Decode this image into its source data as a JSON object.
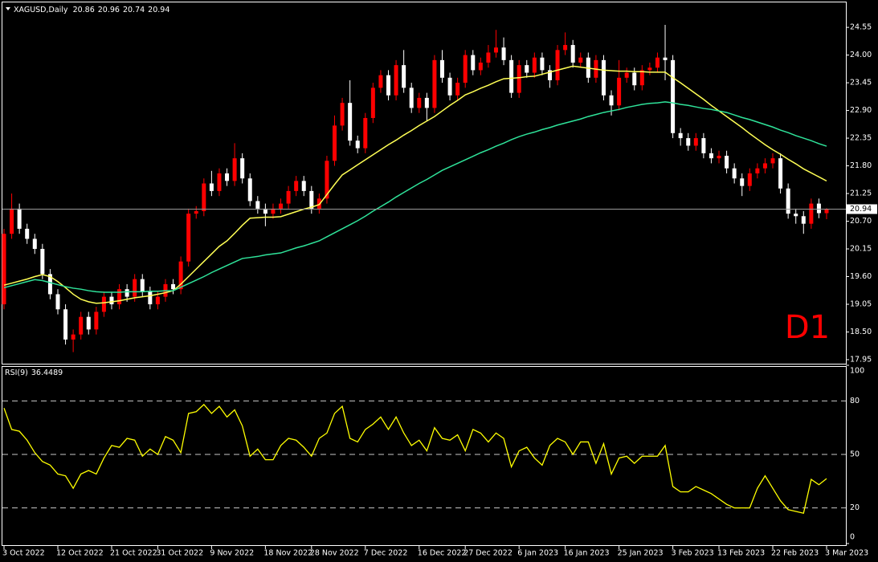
{
  "chart_data": {
    "type": "candlestick",
    "symbol": "XAGUSD,Daily",
    "watermark": "D1",
    "categories": [
      "3 Oct 2022",
      null,
      null,
      null,
      null,
      null,
      null,
      "12 Oct 2022",
      null,
      null,
      null,
      null,
      null,
      null,
      "21 Oct 2022",
      null,
      null,
      null,
      null,
      null,
      "31 Oct 2022",
      null,
      null,
      null,
      null,
      null,
      null,
      "9 Nov 2022",
      null,
      null,
      null,
      null,
      null,
      null,
      "18 Nov 2022",
      null,
      null,
      null,
      null,
      null,
      "28 Nov 2022",
      null,
      null,
      null,
      null,
      null,
      null,
      "7 Dec 2022",
      null,
      null,
      null,
      null,
      null,
      null,
      "16 Dec 2022",
      null,
      null,
      null,
      null,
      null,
      "27 Dec 2022",
      null,
      null,
      null,
      null,
      null,
      null,
      "6 Jan 2023",
      null,
      null,
      null,
      null,
      null,
      "16 Jan 2023",
      null,
      null,
      null,
      null,
      null,
      null,
      "25 Jan 2023",
      null,
      null,
      null,
      null,
      null,
      null,
      "3 Feb 2023",
      null,
      null,
      null,
      null,
      null,
      "13 Feb 2023",
      null,
      null,
      null,
      null,
      null,
      null,
      "22 Feb 2023",
      null,
      null,
      null,
      null,
      null,
      null,
      "3 Mar 2023"
    ],
    "open": [
      19.05,
      20.45,
      20.95,
      20.55,
      20.35,
      20.15,
      19.65,
      19.25,
      18.95,
      18.35,
      18.45,
      18.8,
      18.55,
      18.9,
      19.2,
      19.05,
      19.35,
      19.2,
      19.55,
      19.3,
      19.05,
      19.2,
      19.45,
      19.35,
      19.9,
      20.85,
      20.9,
      21.45,
      21.3,
      21.65,
      21.5,
      21.95,
      21.55,
      21.1,
      20.95,
      20.85,
      20.95,
      21.05,
      21.3,
      21.5,
      21.3,
      20.95,
      21.15,
      21.9,
      22.6,
      23.05,
      22.3,
      22.15,
      22.75,
      23.35,
      23.6,
      23.2,
      23.8,
      23.35,
      22.95,
      23.15,
      22.95,
      23.9,
      23.55,
      23.2,
      23.45,
      24.0,
      23.7,
      23.85,
      24.05,
      24.15,
      23.9,
      23.25,
      23.8,
      23.65,
      23.95,
      23.7,
      23.5,
      24.1,
      24.2,
      23.85,
      23.95,
      23.55,
      23.9,
      23.2,
      23.0,
      23.55,
      23.65,
      23.4,
      23.7,
      23.75,
      23.95,
      23.9,
      22.45,
      22.35,
      22.2,
      22.35,
      22.05,
      21.95,
      22.0,
      21.75,
      21.55,
      21.4,
      21.65,
      21.75,
      21.85,
      21.95,
      21.35,
      20.85,
      20.8,
      20.65,
      21.05,
      20.86
    ],
    "high": [
      20.55,
      21.25,
      21.05,
      20.65,
      20.45,
      20.25,
      19.75,
      19.35,
      19.05,
      18.55,
      18.9,
      18.9,
      19.0,
      19.3,
      19.3,
      19.45,
      19.45,
      19.65,
      19.65,
      19.4,
      19.3,
      19.55,
      19.55,
      20.0,
      20.95,
      21.0,
      21.55,
      21.7,
      21.75,
      21.75,
      22.25,
      22.05,
      21.65,
      21.2,
      21.05,
      21.05,
      21.15,
      21.4,
      21.6,
      21.6,
      21.4,
      21.25,
      22.0,
      22.8,
      23.15,
      23.5,
      22.4,
      22.85,
      23.45,
      23.7,
      23.7,
      23.9,
      24.1,
      23.45,
      23.25,
      23.25,
      24.0,
      24.1,
      23.65,
      23.55,
      24.1,
      24.1,
      23.95,
      24.2,
      24.5,
      24.35,
      24.0,
      23.9,
      23.9,
      24.05,
      24.05,
      23.8,
      24.2,
      24.45,
      24.3,
      24.05,
      24.05,
      24.0,
      24.0,
      23.3,
      23.9,
      23.75,
      23.75,
      23.8,
      23.85,
      24.05,
      24.6,
      24.0,
      22.55,
      22.45,
      22.45,
      22.45,
      22.15,
      22.1,
      22.1,
      21.85,
      21.65,
      21.75,
      21.85,
      21.95,
      22.05,
      22.05,
      21.45,
      20.95,
      20.9,
      21.15,
      21.15,
      20.96
    ],
    "low": [
      18.95,
      20.35,
      20.45,
      20.25,
      20.05,
      19.55,
      19.15,
      18.85,
      18.25,
      18.1,
      18.35,
      18.45,
      18.45,
      18.8,
      18.95,
      18.95,
      19.1,
      19.1,
      19.2,
      18.95,
      18.95,
      19.1,
      19.25,
      19.25,
      19.8,
      20.75,
      20.8,
      21.2,
      21.2,
      21.4,
      21.4,
      21.45,
      21.0,
      20.85,
      20.6,
      20.75,
      20.85,
      20.95,
      21.2,
      21.2,
      20.85,
      20.85,
      21.05,
      21.8,
      22.5,
      22.2,
      22.05,
      22.05,
      22.65,
      23.25,
      23.1,
      23.1,
      23.25,
      22.85,
      22.85,
      22.7,
      22.85,
      23.45,
      23.1,
      23.1,
      23.35,
      23.6,
      23.6,
      23.75,
      23.95,
      23.8,
      23.15,
      23.15,
      23.55,
      23.55,
      23.6,
      23.35,
      23.4,
      24.0,
      23.75,
      23.75,
      23.45,
      23.45,
      23.1,
      22.8,
      22.9,
      23.45,
      23.3,
      23.3,
      23.6,
      23.65,
      23.5,
      22.35,
      22.2,
      22.1,
      22.1,
      21.95,
      21.85,
      21.85,
      21.65,
      21.45,
      21.2,
      21.3,
      21.55,
      21.65,
      21.75,
      21.25,
      20.75,
      20.65,
      20.45,
      20.55,
      20.76,
      20.74
    ],
    "close": [
      20.45,
      20.95,
      20.55,
      20.35,
      20.15,
      19.65,
      19.25,
      18.95,
      18.35,
      18.45,
      18.8,
      18.55,
      18.9,
      19.2,
      19.05,
      19.35,
      19.2,
      19.55,
      19.3,
      19.05,
      19.2,
      19.45,
      19.35,
      19.9,
      20.85,
      20.9,
      21.45,
      21.3,
      21.65,
      21.5,
      21.95,
      21.55,
      21.1,
      20.95,
      20.85,
      20.95,
      21.05,
      21.3,
      21.5,
      21.3,
      20.95,
      21.15,
      21.9,
      22.6,
      23.05,
      22.3,
      22.15,
      22.75,
      23.35,
      23.6,
      23.2,
      23.8,
      23.35,
      22.95,
      23.15,
      22.95,
      23.9,
      23.55,
      23.2,
      23.45,
      24.0,
      23.7,
      23.85,
      24.05,
      24.15,
      23.9,
      23.25,
      23.8,
      23.65,
      23.95,
      23.7,
      23.5,
      24.1,
      24.2,
      23.85,
      23.95,
      23.55,
      23.9,
      23.2,
      23.0,
      23.55,
      23.65,
      23.4,
      23.7,
      23.75,
      23.95,
      23.9,
      22.45,
      22.35,
      22.2,
      22.35,
      22.05,
      21.95,
      22.0,
      21.75,
      21.55,
      21.4,
      21.65,
      21.75,
      21.85,
      21.95,
      21.35,
      20.85,
      20.8,
      20.65,
      21.05,
      20.86,
      20.94
    ],
    "up_color": "#ff0000",
    "down_color": "#ffffff",
    "last_price_line": true,
    "overlays": [
      {
        "color": "#ffff55",
        "values": [
          19.43,
          19.47,
          19.51,
          19.55,
          19.6,
          19.64,
          19.6,
          19.5,
          19.38,
          19.25,
          19.15,
          19.1,
          19.07,
          19.08,
          19.1,
          19.12,
          19.15,
          19.18,
          19.2,
          19.22,
          19.25,
          19.28,
          19.32,
          19.45,
          19.6,
          19.75,
          19.9,
          20.05,
          20.2,
          20.31,
          20.46,
          20.62,
          20.76,
          20.77,
          20.78,
          20.78,
          20.79,
          20.84,
          20.89,
          20.94,
          20.98,
          21.03,
          21.23,
          21.43,
          21.62,
          21.72,
          21.82,
          21.92,
          22.02,
          22.12,
          22.22,
          22.31,
          22.41,
          22.5,
          22.6,
          22.69,
          22.78,
          22.89,
          23.0,
          23.1,
          23.21,
          23.27,
          23.34,
          23.4,
          23.47,
          23.53,
          23.54,
          23.55,
          23.57,
          23.58,
          23.62,
          23.66,
          23.7,
          23.74,
          23.78,
          23.76,
          23.74,
          23.72,
          23.7,
          23.69,
          23.68,
          23.68,
          23.67,
          23.67,
          23.66,
          23.66,
          23.66,
          23.55,
          23.45,
          23.34,
          23.23,
          23.12,
          23.0,
          22.89,
          22.78,
          22.67,
          22.56,
          22.44,
          22.33,
          22.22,
          22.12,
          22.03,
          21.93,
          21.84,
          21.74,
          21.66,
          21.58,
          21.5
        ]
      },
      {
        "color": "#2fe39a",
        "values": [
          19.38,
          19.42,
          19.46,
          19.5,
          19.54,
          19.52,
          19.48,
          19.44,
          19.4,
          19.37,
          19.35,
          19.32,
          19.3,
          19.29,
          19.29,
          19.29,
          19.3,
          19.3,
          19.3,
          19.31,
          19.31,
          19.32,
          19.32,
          19.39,
          19.46,
          19.53,
          19.6,
          19.68,
          19.75,
          19.82,
          19.89,
          19.96,
          19.98,
          20.0,
          20.03,
          20.05,
          20.07,
          20.12,
          20.17,
          20.21,
          20.26,
          20.31,
          20.39,
          20.47,
          20.55,
          20.63,
          20.71,
          20.8,
          20.9,
          20.99,
          21.08,
          21.18,
          21.27,
          21.36,
          21.45,
          21.53,
          21.62,
          21.71,
          21.78,
          21.85,
          21.92,
          21.99,
          22.06,
          22.12,
          22.19,
          22.25,
          22.32,
          22.38,
          22.43,
          22.47,
          22.52,
          22.56,
          22.61,
          22.65,
          22.69,
          22.73,
          22.78,
          22.82,
          22.86,
          22.89,
          22.92,
          22.96,
          22.99,
          23.02,
          23.04,
          23.05,
          23.07,
          23.05,
          23.02,
          23.0,
          22.97,
          22.94,
          22.92,
          22.89,
          22.86,
          22.81,
          22.76,
          22.72,
          22.67,
          22.62,
          22.57,
          22.51,
          22.46,
          22.4,
          22.35,
          22.3,
          22.24,
          22.19
        ]
      }
    ],
    "ylim": [
      17.87,
      25.03
    ],
    "yticks": [
      17.95,
      {
        "value": 18.5,
        "label": "18.50"
      },
      19.05,
      {
        "value": 19.6,
        "label": "19.60"
      },
      20.15,
      {
        "value": 20.7,
        "label": "20.70"
      },
      21.25,
      {
        "value": 21.8,
        "label": "21.80"
      },
      22.35,
      {
        "value": 22.9,
        "label": "22.90"
      },
      23.45,
      {
        "value": 24.0,
        "label": "24.00"
      },
      24.55
    ],
    "indicator": {
      "type": "line",
      "name": "RSI(9)",
      "color": "#ffff00",
      "values": [
        76,
        64,
        63,
        58,
        51,
        46,
        44,
        39,
        38,
        31,
        39,
        41,
        39,
        48,
        55,
        54,
        59,
        58,
        49,
        53,
        50,
        60,
        58,
        51,
        73,
        74,
        78,
        73,
        77,
        71,
        75,
        66,
        49,
        53,
        47,
        47,
        55,
        59,
        58,
        54,
        49,
        59,
        62,
        73,
        77,
        59,
        57,
        64,
        67,
        71,
        64,
        71,
        62,
        55,
        58,
        52,
        65,
        59,
        58,
        61,
        52,
        64,
        62,
        57,
        62,
        59,
        43,
        52,
        54,
        48,
        44,
        55,
        59,
        57,
        50,
        57,
        57,
        45,
        56,
        39,
        48,
        49,
        45,
        49,
        49,
        49,
        55,
        32,
        29,
        29,
        32,
        30,
        28,
        25,
        22,
        20,
        20,
        20,
        31,
        38,
        31,
        24,
        19,
        18,
        17,
        36,
        33,
        36.4489
      ],
      "ylim": [
        0,
        100
      ],
      "yticks": [
        0,
        20,
        50,
        80,
        100
      ],
      "grid": true
    }
  }
}
